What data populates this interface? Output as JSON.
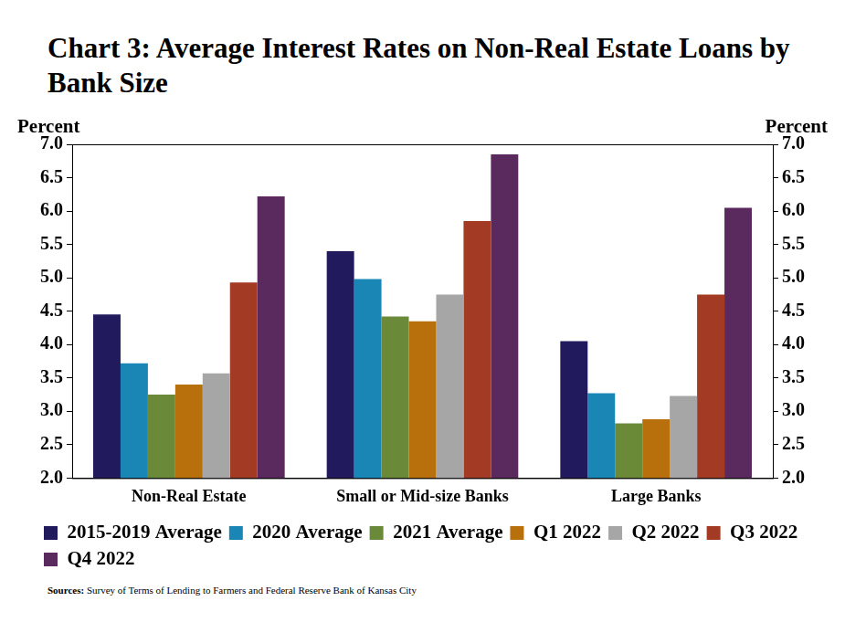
{
  "chart_data": {
    "type": "bar",
    "title": "Chart 3: Average Interest Rates on Non-Real Estate Loans by Bank Size",
    "ylabel": "Percent",
    "y2label": "Percent",
    "source": "Sources: Survey of Terms of Lending to Farmers and Federal Reserve Bank of Kansas City",
    "categories": [
      "Non-Real Estate",
      "Small or Mid-size Banks",
      "Large Banks"
    ],
    "series": [
      {
        "name": "2015-2019 Average",
        "color": "#211b5e",
        "values": [
          4.45,
          5.4,
          4.05
        ]
      },
      {
        "name": "2020 Average",
        "color": "#1a86b6",
        "values": [
          3.72,
          4.98,
          3.27
        ]
      },
      {
        "name": "2021 Average",
        "color": "#6a8a3a",
        "values": [
          3.25,
          4.42,
          2.82
        ]
      },
      {
        "name": "Q1 2022",
        "color": "#b8700c",
        "values": [
          3.4,
          4.35,
          2.88
        ]
      },
      {
        "name": "Q2 2022",
        "color": "#a6a6a6",
        "values": [
          3.57,
          4.75,
          3.23
        ]
      },
      {
        "name": "Q3 2022",
        "color": "#a33a23",
        "values": [
          4.93,
          5.85,
          4.75
        ]
      },
      {
        "name": "Q4 2022",
        "color": "#5a2a5e",
        "values": [
          6.22,
          6.85,
          6.05
        ]
      }
    ],
    "ylim": [
      2.0,
      7.0
    ],
    "yticks": [
      {
        "value": 2,
        "label": "2.0"
      },
      {
        "value": 2.5,
        "label": "2.5"
      },
      {
        "value": 3,
        "label": "3.0"
      },
      {
        "value": 3.5,
        "label": "3.5"
      },
      {
        "value": 4,
        "label": "4.0"
      },
      {
        "value": 4.5,
        "label": "4.5"
      },
      {
        "value": 5,
        "label": "5.0"
      },
      {
        "value": 5.5,
        "label": "5.5"
      },
      {
        "value": 6,
        "label": "6.0"
      },
      {
        "value": 6.5,
        "label": "6.5"
      },
      {
        "value": 7,
        "label": "7.0"
      }
    ],
    "y2lim": [
      2.0,
      7.0
    ],
    "y2ticks": [
      {
        "value": 2,
        "label": "2.0"
      },
      {
        "value": 2.5,
        "label": "2.5"
      },
      {
        "value": 3,
        "label": "3.0"
      },
      {
        "value": 3.5,
        "label": "3.5"
      },
      {
        "value": 4,
        "label": "4.0"
      },
      {
        "value": 4.5,
        "label": "4.5"
      },
      {
        "value": 5,
        "label": "5.0"
      },
      {
        "value": 5.5,
        "label": "5.5"
      },
      {
        "value": 6,
        "label": "6.0"
      },
      {
        "value": 6.5,
        "label": "6.5"
      },
      {
        "value": 7,
        "label": "7.0"
      }
    ],
    "grid": false,
    "legend": "bottom"
  }
}
